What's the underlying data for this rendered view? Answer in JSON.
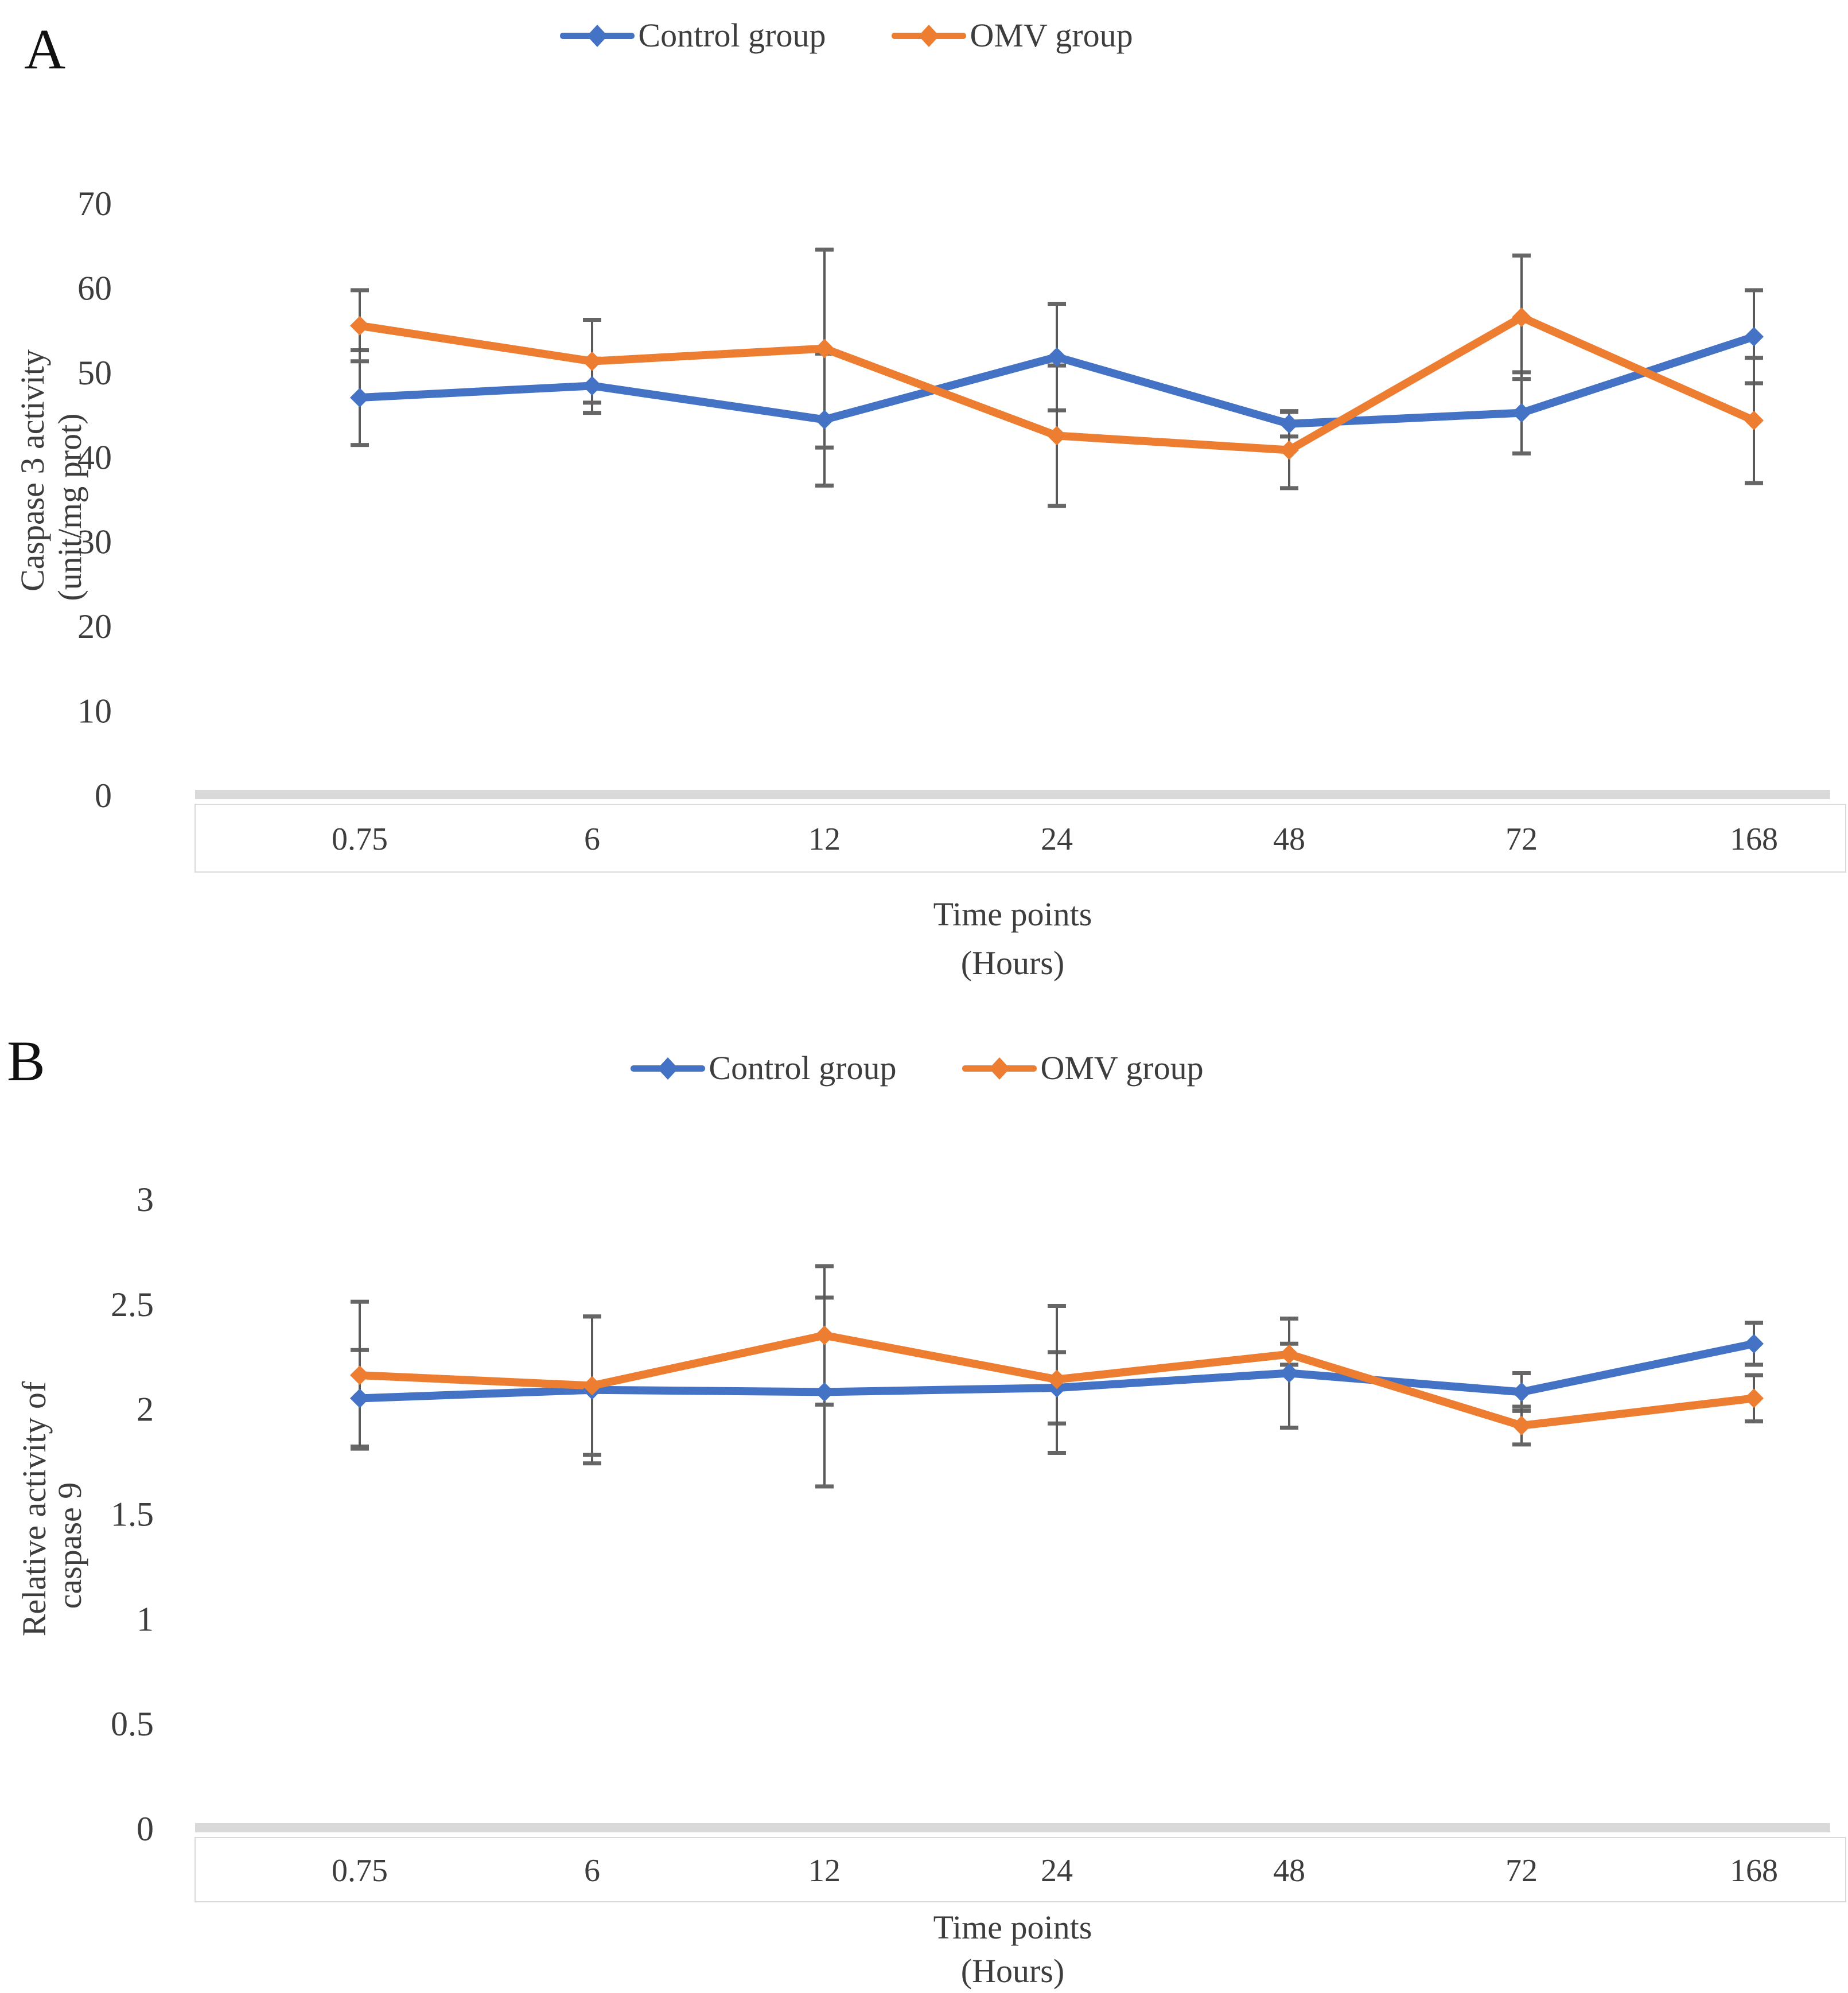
{
  "colors": {
    "control": "#4472C4",
    "omv": "#ED7D31",
    "error_bar": "#595959",
    "error_bar_cap": "#666666",
    "axis_line": "#D9D9D9",
    "text": "#3d3d3d"
  },
  "chart_data": [
    {
      "panel_letter": "A",
      "type": "line",
      "title": "",
      "ylabel_line1": "Caspase 3 activity",
      "ylabel_line2": "(unit/mg prot)",
      "xlabel_line1": "Time points",
      "xlabel_line2": "(Hours)",
      "categories": [
        "0.75",
        "6",
        "12",
        "24",
        "48",
        "72",
        "168"
      ],
      "ylim": [
        0,
        70
      ],
      "ytick_step": 10,
      "ytick_labels": [
        "0",
        "10",
        "20",
        "30",
        "40",
        "50",
        "60",
        "70"
      ],
      "grid": false,
      "legend_position": "top-center",
      "marker": "diamond",
      "series": [
        {
          "name": "Control group",
          "color": "#4472C4",
          "values": [
            47.0,
            48.4,
            44.4,
            51.8,
            43.9,
            45.2,
            54.2
          ],
          "errors": [
            5.6,
            3.2,
            7.8,
            6.3,
            1.5,
            4.8,
            5.5
          ]
        },
        {
          "name": "OMV group",
          "color": "#ED7D31",
          "values": [
            55.5,
            51.3,
            52.8,
            42.5,
            40.8,
            56.5,
            44.3
          ],
          "errors": [
            4.2,
            4.9,
            11.7,
            8.3,
            4.5,
            7.3,
            7.4
          ]
        }
      ]
    },
    {
      "panel_letter": "B",
      "type": "line",
      "title": "",
      "ylabel_line1": "Relative activity of",
      "ylabel_line2": "caspase 9",
      "xlabel_line1": "Time points",
      "xlabel_line2": "(Hours)",
      "categories": [
        "0.75",
        "6",
        "12",
        "24",
        "48",
        "72",
        "168"
      ],
      "ylim": [
        0,
        3
      ],
      "ytick_step": 0.5,
      "ytick_labels": [
        "0",
        "0.5",
        "1",
        "1.5",
        "2",
        "2.5",
        "3"
      ],
      "grid": false,
      "legend_position": "top-center",
      "marker": "diamond",
      "series": [
        {
          "name": "Control group",
          "color": "#4472C4",
          "values": [
            2.05,
            2.09,
            2.08,
            2.1,
            2.17,
            2.08,
            2.31
          ],
          "errors": [
            0.23,
            0.35,
            0.45,
            0.17,
            0.26,
            0.09,
            0.1
          ]
        },
        {
          "name": "OMV group",
          "color": "#ED7D31",
          "values": [
            2.16,
            2.11,
            2.35,
            2.14,
            2.26,
            1.92,
            2.05
          ],
          "errors": [
            0.35,
            0.33,
            0.33,
            0.35,
            0.05,
            0.09,
            0.11
          ]
        }
      ]
    }
  ]
}
